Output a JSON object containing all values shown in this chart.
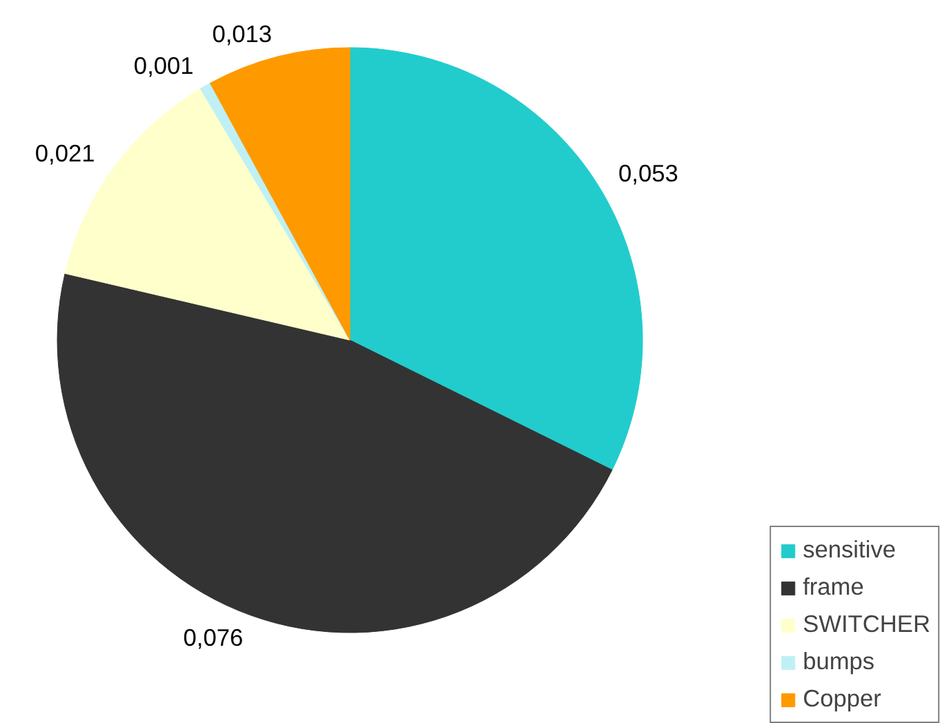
{
  "chart_data": {
    "type": "pie",
    "categories": [
      "sensitive",
      "frame",
      "SWITCHER",
      "bumps",
      "Copper"
    ],
    "values": [
      0.053,
      0.076,
      0.021,
      0.001,
      0.013
    ],
    "value_labels": [
      "0,053",
      "0,076",
      "0,021",
      "0,001",
      "0,013"
    ],
    "colors": [
      "#22cccc",
      "#333333",
      "#ffffcc",
      "#bff0f5",
      "#ff9900"
    ],
    "legend": "bottom right"
  }
}
